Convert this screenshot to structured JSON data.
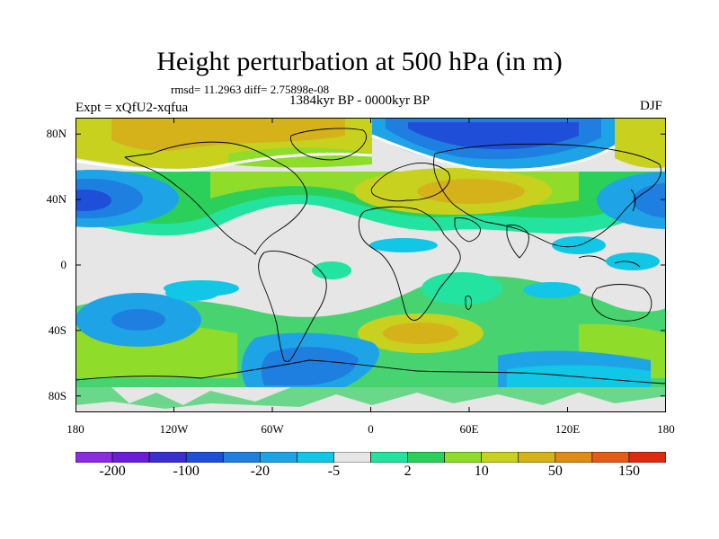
{
  "title": "Height perturbation at 500 hPa (in m)",
  "stats": "rmsd= 11.2963 diff= 2.75898e-08",
  "period": "1384kyr BP - 0000kyr BP",
  "experiment": "Expt = xQfU2-xqfua",
  "season": "DJF",
  "lat_ticks": [
    {
      "label": "80N",
      "lat": 80
    },
    {
      "label": "40N",
      "lat": 40
    },
    {
      "label": "0",
      "lat": 0
    },
    {
      "label": "40S",
      "lat": -40
    },
    {
      "label": "80S",
      "lat": -80
    }
  ],
  "lon_ticks": [
    {
      "label": "180",
      "lon": -180
    },
    {
      "label": "120W",
      "lon": -120
    },
    {
      "label": "60W",
      "lon": -60
    },
    {
      "label": "0",
      "lon": 0
    },
    {
      "label": "60E",
      "lon": 60
    },
    {
      "label": "120E",
      "lon": 120
    },
    {
      "label": "180",
      "lon": 180
    }
  ],
  "colorbar": {
    "colors": [
      "#8a2be2",
      "#6a1ed8",
      "#3a2fd0",
      "#1f4fd8",
      "#1e7fe0",
      "#1ea4e6",
      "#12c6e6",
      "#e6e6e6",
      "#22e3a0",
      "#2ad05a",
      "#8fdc2a",
      "#c8d21e",
      "#d6b21a",
      "#e08a18",
      "#e45c16",
      "#e02a10"
    ],
    "labels": [
      {
        "text": "-200",
        "boundary": 1
      },
      {
        "text": "-100",
        "boundary": 3
      },
      {
        "text": "-20",
        "boundary": 5
      },
      {
        "text": "-5",
        "boundary": 7
      },
      {
        "text": "2",
        "boundary": 9
      },
      {
        "text": "10",
        "boundary": 11
      },
      {
        "text": "50",
        "boundary": 13
      },
      {
        "text": "150",
        "boundary": 15
      }
    ]
  },
  "chart_data": {
    "type": "heatmap",
    "projection": "cylindrical equidistant",
    "xlim": [
      -180,
      180
    ],
    "ylim": [
      -90,
      90
    ],
    "units": "m",
    "field_features": [
      {
        "kind": "negative",
        "lon": -175,
        "lat": 38,
        "note": "strong low over North Pacific"
      },
      {
        "kind": "negative",
        "lon": 40,
        "lat": 78,
        "note": "strong low over Arctic / northern Eurasia"
      },
      {
        "kind": "negative",
        "lon": 160,
        "lat": 40,
        "note": "low over NW Pacific"
      },
      {
        "kind": "positive",
        "lon": -110,
        "lat": 75,
        "note": "high over Arctic Canada / Greenland"
      },
      {
        "kind": "positive",
        "lon": 0,
        "lat": 40,
        "note": "high over North Atlantic / Europe"
      },
      {
        "kind": "positive",
        "lon": 150,
        "lat": 75,
        "note": "high over NE Siberia"
      },
      {
        "kind": "positive",
        "lon": 40,
        "lat": -45,
        "note": "high over South Atlantic / Indian Ocean"
      },
      {
        "kind": "negative",
        "lon": -130,
        "lat": -40,
        "note": "low over South Pacific"
      },
      {
        "kind": "negative",
        "lon": -40,
        "lat": -75,
        "note": "low over Antarctica"
      }
    ]
  }
}
